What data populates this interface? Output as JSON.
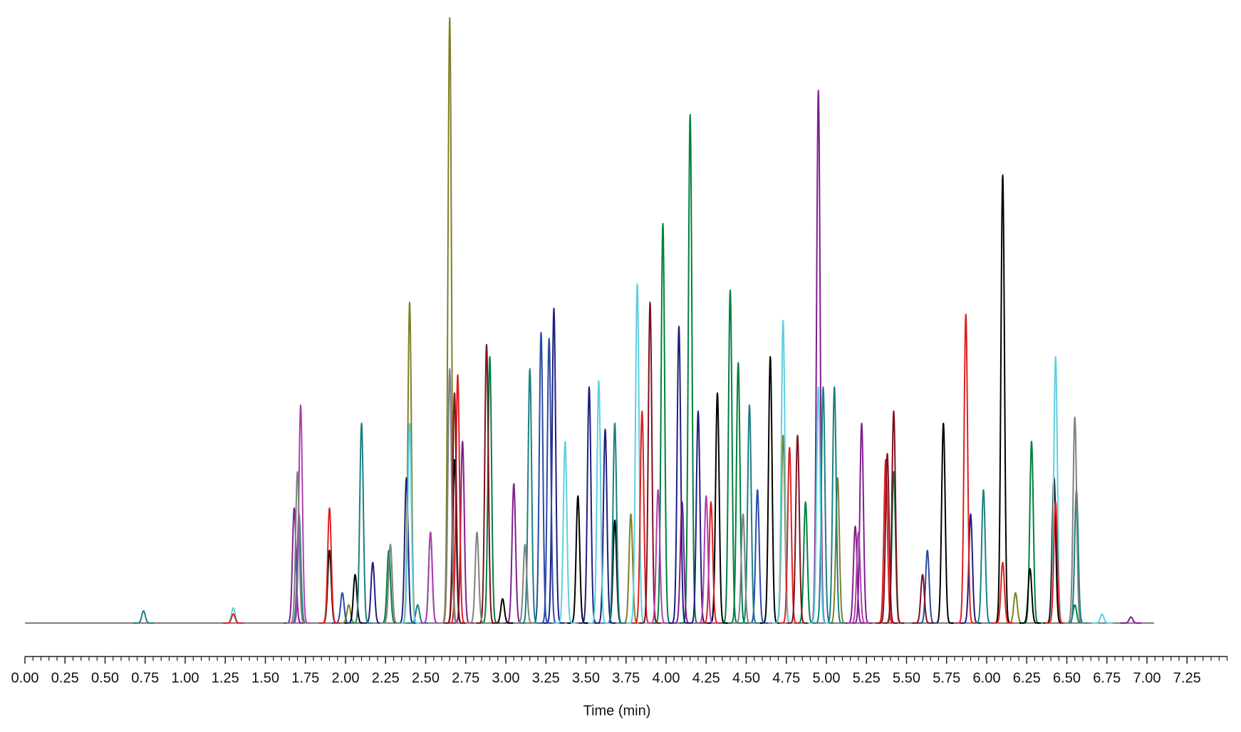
{
  "chart_data": {
    "type": "line",
    "x_label": "Time (min)",
    "xlim": [
      0,
      7.5
    ],
    "xticks": [
      {
        "value": 0,
        "label": "0.00"
      },
      {
        "value": 0.25,
        "label": "0.25"
      },
      {
        "value": 0.5,
        "label": "0.50"
      },
      {
        "value": 0.75,
        "label": "0.75"
      },
      {
        "value": 1,
        "label": "1.00"
      },
      {
        "value": 1.25,
        "label": "1.25"
      },
      {
        "value": 1.5,
        "label": "1.50"
      },
      {
        "value": 1.75,
        "label": "1.75"
      },
      {
        "value": 2,
        "label": "2.00"
      },
      {
        "value": 2.25,
        "label": "2.25"
      },
      {
        "value": 2.5,
        "label": "2.50"
      },
      {
        "value": 2.75,
        "label": "2.75"
      },
      {
        "value": 3,
        "label": "3.00"
      },
      {
        "value": 3.25,
        "label": "3.25"
      },
      {
        "value": 3.5,
        "label": "3.50"
      },
      {
        "value": 3.75,
        "label": "3.75"
      },
      {
        "value": 4,
        "label": "4.00"
      },
      {
        "value": 4.25,
        "label": "4.25"
      },
      {
        "value": 4.5,
        "label": "4.50"
      },
      {
        "value": 4.75,
        "label": "4.75"
      },
      {
        "value": 5,
        "label": "5.00"
      },
      {
        "value": 5.25,
        "label": "5.25"
      },
      {
        "value": 5.5,
        "label": "5.50"
      },
      {
        "value": 5.75,
        "label": "5.75"
      },
      {
        "value": 6,
        "label": "6.00"
      },
      {
        "value": 6.25,
        "label": "6.25"
      },
      {
        "value": 6.5,
        "label": "6.50"
      },
      {
        "value": 6.75,
        "label": "6.75"
      },
      {
        "value": 7,
        "label": "7.00"
      },
      {
        "value": 7.25,
        "label": "7.25"
      }
    ],
    "xminorticks": [
      0.05,
      0.1,
      0.15,
      0.2,
      0.3,
      0.35,
      0.4,
      0.45,
      0.55,
      0.6,
      0.65,
      0.7,
      0.8,
      0.85,
      0.9,
      0.95,
      1.05,
      1.1,
      1.15,
      1.2,
      1.3,
      1.35,
      1.4,
      1.45,
      1.55,
      1.6,
      1.65,
      1.7,
      1.8,
      1.85,
      1.9,
      1.95,
      2.05,
      2.1,
      2.15,
      2.2,
      2.3,
      2.35,
      2.4,
      2.45,
      2.55,
      2.6,
      2.65,
      2.7,
      2.8,
      2.85,
      2.9,
      2.95,
      3.05,
      3.1,
      3.15,
      3.2,
      3.3,
      3.35,
      3.4,
      3.45,
      3.55,
      3.6,
      3.65,
      3.7,
      3.8,
      3.85,
      3.9,
      3.95,
      4.05,
      4.1,
      4.15,
      4.2,
      4.3,
      4.35,
      4.4,
      4.45,
      4.55,
      4.6,
      4.65,
      4.7,
      4.8,
      4.85,
      4.9,
      4.95,
      5.05,
      5.1,
      5.15,
      5.2,
      5.3,
      5.35,
      5.4,
      5.45,
      5.55,
      5.6,
      5.65,
      5.7,
      5.8,
      5.85,
      5.9,
      5.95,
      6.05,
      6.1,
      6.15,
      6.2,
      6.3,
      6.35,
      6.4,
      6.45,
      6.55,
      6.6,
      6.65,
      6.7,
      6.8,
      6.85,
      6.9,
      6.95,
      7.05,
      7.1,
      7.15,
      7.2,
      7.3,
      7.35,
      7.4,
      7.45,
      7.5
    ],
    "series": [
      {
        "color": "#7f7f2a",
        "x": [
          2.02,
          2.4,
          2.65,
          3.78,
          4.73,
          5.07,
          6.18
        ],
        "values": [
          3,
          53,
          100,
          18,
          31,
          24,
          5
        ]
      },
      {
        "color": "#008040",
        "x": [
          2.27,
          2.53,
          2.9,
          3.98,
          4.15,
          4.4,
          4.45,
          4.87,
          5.42,
          6.28,
          6.55
        ],
        "values": [
          12,
          15,
          44,
          66,
          84,
          55,
          43,
          20,
          25,
          30,
          3
        ]
      },
      {
        "color": "#7f1f8f",
        "x": [
          1.68,
          2.73,
          3.05,
          4.1,
          4.95,
          5.18,
          5.22,
          6.9
        ],
        "values": [
          19,
          30,
          23,
          20,
          88,
          16,
          33,
          1
        ]
      },
      {
        "color": "#000000",
        "x": [
          1.9,
          2.06,
          2.68,
          2.98,
          3.45,
          3.68,
          4.32,
          4.65,
          5.73,
          6.1,
          6.27,
          6.42
        ],
        "values": [
          12,
          8,
          27,
          4,
          21,
          17,
          38,
          44,
          33,
          74,
          9,
          24
        ]
      },
      {
        "color": "#1f1f7f",
        "x": [
          2.17,
          2.38,
          3.3,
          3.52,
          3.62,
          4.08,
          4.2,
          5.9
        ],
        "values": [
          10,
          24,
          52,
          39,
          32,
          49,
          35,
          18
        ]
      },
      {
        "color": "#2a4aa8",
        "x": [
          1.98,
          3.22,
          3.27,
          4.57,
          5.63
        ],
        "values": [
          5,
          48,
          47,
          22,
          12
        ]
      },
      {
        "color": "#1a8080",
        "x": [
          0.74,
          1.71,
          2.1,
          2.45,
          3.15,
          3.68,
          4.52,
          4.98,
          5.05,
          5.98,
          6.56
        ],
        "values": [
          2,
          18,
          33,
          3,
          42,
          33,
          36,
          39,
          39,
          22,
          22
        ]
      },
      {
        "color": "#5fcfe0",
        "x": [
          1.3,
          2.4,
          3.37,
          3.58,
          3.82,
          4.73,
          4.95,
          6.43,
          6.72
        ],
        "values": [
          2.5,
          33,
          30,
          40,
          56,
          50,
          39,
          44,
          1.5
        ]
      },
      {
        "color": "#e01f1f",
        "x": [
          1.3,
          1.9,
          2.7,
          3.85,
          4.28,
          4.77,
          5.37,
          5.87,
          6.1,
          6.43
        ],
        "values": [
          1.5,
          19,
          41,
          35,
          20,
          29,
          27,
          51,
          10,
          20
        ]
      },
      {
        "color": "#7f0f1f",
        "x": [
          2.68,
          2.88,
          3.9,
          4.82,
          5.38,
          5.42,
          5.6
        ],
        "values": [
          38,
          46,
          53,
          31,
          28,
          35,
          8
        ]
      },
      {
        "color": "#b040b0",
        "x": [
          1.72,
          2.53,
          3.95,
          4.25,
          5.2
        ],
        "values": [
          36,
          15,
          22,
          21,
          15
        ]
      },
      {
        "color": "#808080",
        "x": [
          1.7,
          2.28,
          2.65,
          2.82,
          3.12,
          4.48,
          6.55
        ],
        "values": [
          25,
          13,
          42,
          15,
          13,
          18,
          34
        ]
      }
    ]
  }
}
